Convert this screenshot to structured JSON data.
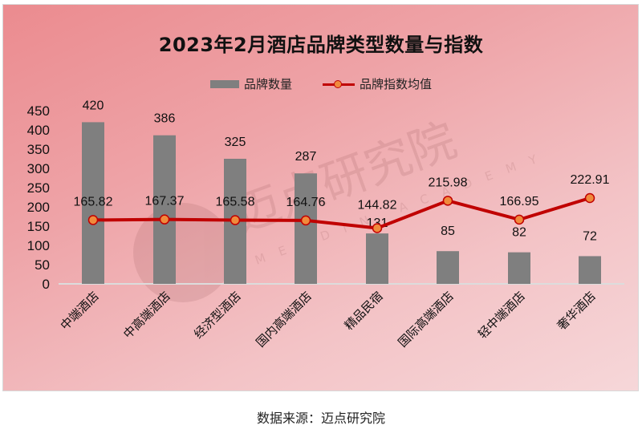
{
  "chart": {
    "title": "2023年2月酒店品牌类型数量与指数",
    "legend": {
      "bar_label": "品牌数量",
      "line_label": "品牌指数均值"
    },
    "y_ticks": [
      "450",
      "400",
      "350",
      "300",
      "250",
      "200",
      "150",
      "100",
      "50",
      "0"
    ],
    "watermark": {
      "text_cn": "迈点研究院",
      "text_en": "MEADIN ACADEMY"
    },
    "colors": {
      "bar": "#7f7f7f",
      "line": "#c00000",
      "marker": "#f08a3c",
      "background_start": "#eb8b8f",
      "background_end": "#f6d7d9"
    }
  },
  "source_note": "数据来源：迈点研究院",
  "chart_data": {
    "type": "bar",
    "title": "2023年2月酒店品牌类型数量与指数",
    "xlabel": "",
    "ylabel": "",
    "ylim": [
      0,
      450
    ],
    "yticks": [
      0,
      50,
      100,
      150,
      200,
      250,
      300,
      350,
      400,
      450
    ],
    "grid": false,
    "legend_position": "top",
    "categories": [
      "中端酒店",
      "中高端酒店",
      "经济型酒店",
      "国内高端酒店",
      "精品民宿",
      "国际高端酒店",
      "轻中端酒店",
      "奢华酒店"
    ],
    "series": [
      {
        "name": "品牌数量",
        "type": "bar",
        "values": [
          420,
          386,
          325,
          287,
          131,
          85,
          82,
          72
        ]
      },
      {
        "name": "品牌指数均值",
        "type": "line",
        "values": [
          165.82,
          167.37,
          165.58,
          164.76,
          144.82,
          215.98,
          166.95,
          222.91
        ]
      }
    ]
  }
}
